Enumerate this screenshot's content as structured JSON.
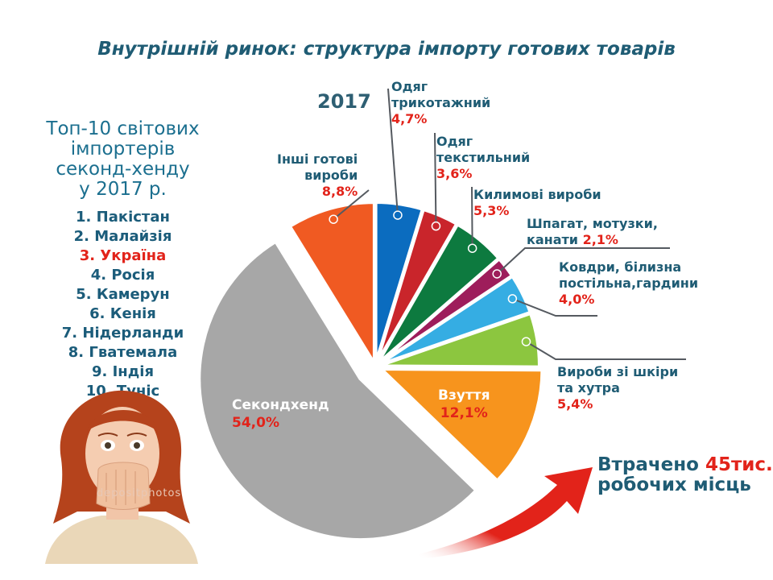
{
  "title": "Внутрішній ринок: структура імпорту готових товарів",
  "year_label": "2017",
  "top10": {
    "heading": [
      "Топ-10 світових",
      "імпортерів",
      "секонд-хенду",
      "у 2017 р."
    ],
    "items": [
      "1. Пакістан",
      "2. Малайзія",
      "3. Україна",
      "4. Росія",
      "5. Камерун",
      "6. Кенія",
      "7. Нідерланди",
      "8. Гватемала",
      "9. Індія",
      "10. Туніс"
    ],
    "highlight_index": 2
  },
  "lost_jobs": {
    "prefix": "Втрачено",
    "highlight": "45тис.",
    "suffix": "робочих місць"
  },
  "watermark": "depositphotos",
  "chart_data": {
    "type": "pie",
    "unit": "%",
    "slices": [
      {
        "key": "knit",
        "label_lines": [
          "Одяг",
          "трикотажний"
        ],
        "value_text": "4,7%",
        "value": 4.7,
        "color": "#0b6cbf"
      },
      {
        "key": "textile",
        "label_lines": [
          "Одяг",
          "текстильний"
        ],
        "value_text": "3,6%",
        "value": 3.6,
        "color": "#c9252b"
      },
      {
        "key": "carpets",
        "label_lines": [
          "Килимові вироби"
        ],
        "value_text": "5,3%",
        "value": 5.3,
        "color": "#0d7a3f"
      },
      {
        "key": "twine",
        "label_lines": [
          "Шпагат, мотузки,",
          "канати"
        ],
        "value_text": "2,1%",
        "value": 2.1,
        "color": "#9e1d5b"
      },
      {
        "key": "blankets",
        "label_lines": [
          "Ковдри, білизна",
          "постільна,гардини"
        ],
        "value_text": "4,0%",
        "value": 4.0,
        "color": "#35ade3"
      },
      {
        "key": "leather",
        "label_lines": [
          "Вироби зі шкіри",
          "та хутра"
        ],
        "value_text": "5,4%",
        "value": 5.4,
        "color": "#8cc63f"
      },
      {
        "key": "shoes",
        "label_lines": [
          "Взуття"
        ],
        "value_text": "12,1%",
        "value": 12.1,
        "color": "#f7941d"
      },
      {
        "key": "secondhand",
        "label_lines": [
          "Секондхенд"
        ],
        "value_text": "54,0%",
        "value": 54.0,
        "color": "#a7a7a7"
      },
      {
        "key": "other",
        "label_lines": [
          "Інші готові",
          "вироби"
        ],
        "value_text": "8,8%",
        "value": 8.8,
        "color": "#f05a22"
      }
    ]
  },
  "colors": {
    "title": "#1f5c74",
    "highlight": "#e2231a",
    "leader": "#555a60"
  }
}
